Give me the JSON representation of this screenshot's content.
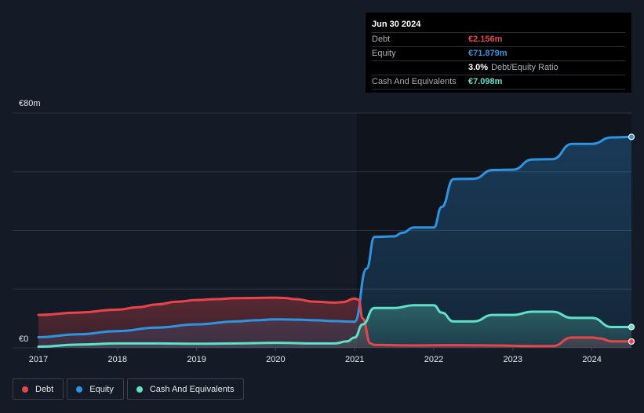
{
  "tooltip": {
    "date": "Jun 30 2024",
    "debt_label": "Debt",
    "debt_value": "€2.156m",
    "equity_label": "Equity",
    "equity_value": "€71.879m",
    "ratio_value": "3.0%",
    "ratio_label": "Debt/Equity Ratio",
    "cash_label": "Cash And Equivalents",
    "cash_value": "€7.098m"
  },
  "legend": {
    "debt": "Debt",
    "equity": "Equity",
    "cash": "Cash And Equivalents"
  },
  "colors": {
    "background": "#151b26",
    "debt": "#e8454b",
    "equity": "#2f94e0",
    "cash": "#5fe0c8",
    "grid": "#2c323e"
  },
  "chart_data": {
    "type": "area",
    "title": "",
    "xlabel": "",
    "ylabel": "",
    "ylim": [
      0,
      80
    ],
    "xlim": [
      2017.0,
      2024.5
    ],
    "y_tick_labels": [
      {
        "value": 80,
        "label": "€80m"
      },
      {
        "value": 0,
        "label": "€0"
      }
    ],
    "gridlines": [
      0,
      20,
      40,
      60,
      80
    ],
    "x_ticks": [
      2017,
      2018,
      2019,
      2020,
      2021,
      2022,
      2023,
      2024
    ],
    "x_tick_labels": [
      "2017",
      "2018",
      "2019",
      "2020",
      "2021",
      "2022",
      "2023",
      "2024"
    ],
    "series": [
      {
        "name": "Debt",
        "key": "debt",
        "points": [
          [
            2017.0,
            11.2
          ],
          [
            2017.5,
            12.0
          ],
          [
            2018.0,
            13.0
          ],
          [
            2018.25,
            13.8
          ],
          [
            2018.5,
            14.8
          ],
          [
            2018.75,
            15.7
          ],
          [
            2019.0,
            16.3
          ],
          [
            2019.25,
            16.6
          ],
          [
            2019.5,
            16.9
          ],
          [
            2019.75,
            17.0
          ],
          [
            2020.0,
            17.1
          ],
          [
            2020.1,
            17.0
          ],
          [
            2020.25,
            16.6
          ],
          [
            2020.5,
            15.7
          ],
          [
            2020.75,
            15.4
          ],
          [
            2020.85,
            15.6
          ],
          [
            2021.0,
            16.8
          ],
          [
            2021.05,
            16.4
          ],
          [
            2021.1,
            10.0
          ],
          [
            2021.2,
            1.5
          ],
          [
            2021.25,
            1.0
          ],
          [
            2021.75,
            0.8
          ],
          [
            2022.25,
            0.9
          ],
          [
            2022.75,
            0.8
          ],
          [
            2023.25,
            0.6
          ],
          [
            2023.5,
            0.6
          ],
          [
            2023.75,
            3.5
          ],
          [
            2024.0,
            3.5
          ],
          [
            2024.1,
            3.2
          ],
          [
            2024.25,
            2.2
          ],
          [
            2024.5,
            2.156
          ]
        ]
      },
      {
        "name": "Equity",
        "key": "equity",
        "points": [
          [
            2017.0,
            3.6
          ],
          [
            2017.5,
            4.6
          ],
          [
            2018.0,
            5.7
          ],
          [
            2018.5,
            6.9
          ],
          [
            2019.0,
            8.0
          ],
          [
            2019.5,
            9.0
          ],
          [
            2019.75,
            9.4
          ],
          [
            2020.0,
            9.7
          ],
          [
            2020.25,
            9.6
          ],
          [
            2020.5,
            9.4
          ],
          [
            2020.75,
            9.1
          ],
          [
            2021.0,
            8.9
          ],
          [
            2021.15,
            27.0
          ],
          [
            2021.25,
            37.8
          ],
          [
            2021.5,
            38.0
          ],
          [
            2021.6,
            39.2
          ],
          [
            2021.75,
            41.0
          ],
          [
            2022.0,
            41.0
          ],
          [
            2022.1,
            48.0
          ],
          [
            2022.25,
            57.5
          ],
          [
            2022.5,
            57.6
          ],
          [
            2022.75,
            60.6
          ],
          [
            2023.0,
            60.7
          ],
          [
            2023.25,
            64.2
          ],
          [
            2023.5,
            64.3
          ],
          [
            2023.75,
            69.5
          ],
          [
            2024.0,
            69.5
          ],
          [
            2024.25,
            71.7
          ],
          [
            2024.5,
            71.879
          ]
        ]
      },
      {
        "name": "Cash And Equivalents",
        "key": "cash",
        "points": [
          [
            2017.0,
            0.4
          ],
          [
            2017.5,
            1.1
          ],
          [
            2018.0,
            1.5
          ],
          [
            2018.5,
            1.5
          ],
          [
            2019.0,
            1.4
          ],
          [
            2019.5,
            1.5
          ],
          [
            2020.0,
            1.7
          ],
          [
            2020.5,
            1.5
          ],
          [
            2020.75,
            1.5
          ],
          [
            2020.9,
            2.2
          ],
          [
            2021.0,
            3.5
          ],
          [
            2021.1,
            8.0
          ],
          [
            2021.25,
            13.6
          ],
          [
            2021.5,
            13.6
          ],
          [
            2021.75,
            14.5
          ],
          [
            2022.0,
            14.5
          ],
          [
            2022.1,
            12.0
          ],
          [
            2022.25,
            9.0
          ],
          [
            2022.5,
            9.0
          ],
          [
            2022.75,
            11.2
          ],
          [
            2023.0,
            11.2
          ],
          [
            2023.25,
            12.3
          ],
          [
            2023.5,
            12.3
          ],
          [
            2023.75,
            10.2
          ],
          [
            2024.0,
            10.2
          ],
          [
            2024.25,
            7.1
          ],
          [
            2024.5,
            7.098
          ]
        ]
      }
    ]
  }
}
